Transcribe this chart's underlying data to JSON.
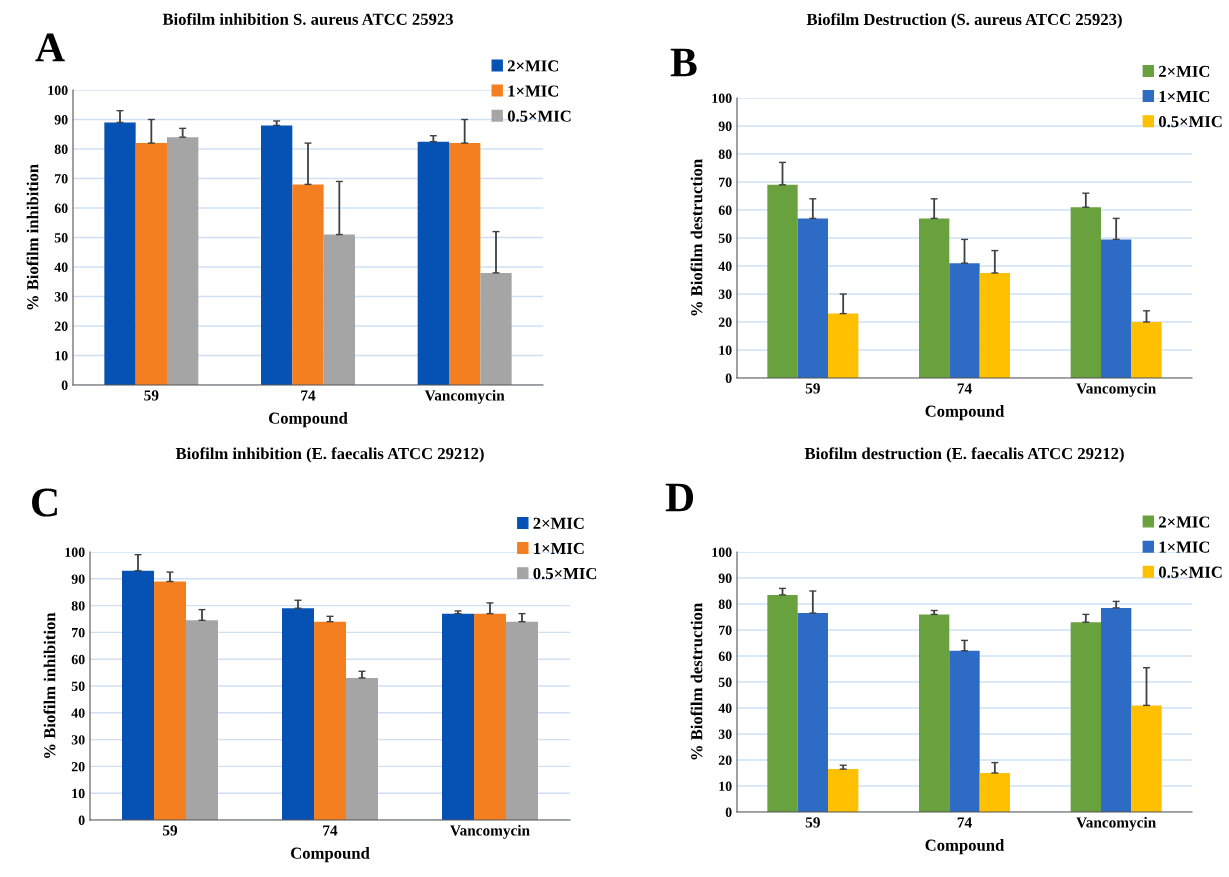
{
  "chart_data": [
    {
      "type": "bar",
      "title": "Biofilm inhibition S. aureus ATCC 25923",
      "xlabel": "Compound",
      "ylabel": "% Biofilm inhibition",
      "annotations": [
        "A"
      ],
      "categories": [
        "59",
        "74",
        "Vancomycin"
      ],
      "ylim": [
        0,
        100
      ],
      "yticks": [
        0,
        10,
        20,
        30,
        40,
        50,
        60,
        70,
        80,
        90,
        100
      ],
      "grid": "y",
      "legend": "top right",
      "series": [
        {
          "name": "2×MIC",
          "color": "#0652b4",
          "values": [
            89,
            88,
            82.5
          ],
          "errors": [
            [
              89,
              93
            ],
            [
              88,
              89.5
            ],
            [
              82.5,
              84.5
            ]
          ]
        },
        {
          "name": "1×MIC",
          "color": "#f47f20",
          "values": [
            82,
            68,
            82
          ],
          "errors": [
            [
              82,
              90
            ],
            [
              68,
              82
            ],
            [
              82,
              90
            ]
          ]
        },
        {
          "name": "0.5×MIC",
          "color": "#a5a5a5",
          "values": [
            84,
            51,
            38
          ],
          "errors": [
            [
              84,
              87
            ],
            [
              51,
              69
            ],
            [
              38,
              52
            ]
          ]
        }
      ]
    },
    {
      "type": "bar",
      "title": "Biofilm Destruction (S. aureus ATCC 25923)",
      "xlabel": "Compound",
      "ylabel": "% Biofilm destruction",
      "annotations": [
        "B"
      ],
      "categories": [
        "59",
        "74",
        "Vancomycin"
      ],
      "ylim": [
        0,
        100
      ],
      "yticks": [
        0,
        10,
        20,
        30,
        40,
        50,
        60,
        70,
        80,
        90,
        100
      ],
      "grid": "y",
      "legend": "top right",
      "series": [
        {
          "name": "2×MIC",
          "color": "#6aa13f",
          "values": [
            69,
            57,
            61
          ],
          "errors": [
            [
              69,
              77
            ],
            [
              57,
              64
            ],
            [
              61,
              66
            ]
          ]
        },
        {
          "name": "1×MIC",
          "color": "#2e6bc4",
          "values": [
            57,
            41,
            49.5
          ],
          "errors": [
            [
              57,
              64
            ],
            [
              41,
              49.5
            ],
            [
              49.5,
              57
            ]
          ]
        },
        {
          "name": "0.5×MIC",
          "color": "#ffc000",
          "values": [
            23,
            37.5,
            20
          ],
          "errors": [
            [
              23,
              30
            ],
            [
              37.5,
              45.5
            ],
            [
              20,
              24
            ]
          ]
        }
      ]
    },
    {
      "type": "bar",
      "title": "Biofilm inhibition (E. faecalis ATCC 29212)",
      "xlabel": "Compound",
      "ylabel": "% Biofilm inhibition",
      "annotations": [
        "C"
      ],
      "categories": [
        "59",
        "74",
        "Vancomycin"
      ],
      "ylim": [
        0,
        100
      ],
      "yticks": [
        0,
        10,
        20,
        30,
        40,
        50,
        60,
        70,
        80,
        90,
        100
      ],
      "grid": "y",
      "legend": "top right",
      "series": [
        {
          "name": "2×MIC",
          "color": "#0652b4",
          "values": [
            93,
            79,
            77
          ],
          "errors": [
            [
              93,
              99
            ],
            [
              79,
              82
            ],
            [
              77,
              78
            ]
          ]
        },
        {
          "name": "1×MIC",
          "color": "#f47f20",
          "values": [
            89,
            74,
            77
          ],
          "errors": [
            [
              89,
              92.5
            ],
            [
              74,
              76
            ],
            [
              77,
              81
            ]
          ]
        },
        {
          "name": "0.5×MIC",
          "color": "#a5a5a5",
          "values": [
            74.5,
            53,
            74
          ],
          "errors": [
            [
              74.5,
              78.5
            ],
            [
              53,
              55.5
            ],
            [
              74,
              77
            ]
          ]
        }
      ]
    },
    {
      "type": "bar",
      "title": "Biofilm destruction (E. faecalis ATCC 29212)",
      "xlabel": "Compound",
      "ylabel": "% Biofilm destruction",
      "annotations": [
        "D"
      ],
      "categories": [
        "59",
        "74",
        "Vancomycin"
      ],
      "ylim": [
        0,
        100
      ],
      "yticks": [
        0,
        10,
        20,
        30,
        40,
        50,
        60,
        70,
        80,
        90,
        100
      ],
      "grid": "y",
      "legend": "top right",
      "series": [
        {
          "name": "2×MIC",
          "color": "#6aa13f",
          "values": [
            83.5,
            76,
            73
          ],
          "errors": [
            [
              83.5,
              86
            ],
            [
              76,
              77.5
            ],
            [
              73,
              76
            ]
          ]
        },
        {
          "name": "1×MIC",
          "color": "#2e6bc4",
          "values": [
            76.5,
            62,
            78.5
          ],
          "errors": [
            [
              76.5,
              85
            ],
            [
              62,
              66
            ],
            [
              78.5,
              81
            ]
          ]
        },
        {
          "name": "0.5×MIC",
          "color": "#ffc000",
          "values": [
            16.5,
            15,
            41
          ],
          "errors": [
            [
              16.5,
              18
            ],
            [
              15,
              19
            ],
            [
              41,
              55.5
            ]
          ]
        }
      ]
    }
  ]
}
